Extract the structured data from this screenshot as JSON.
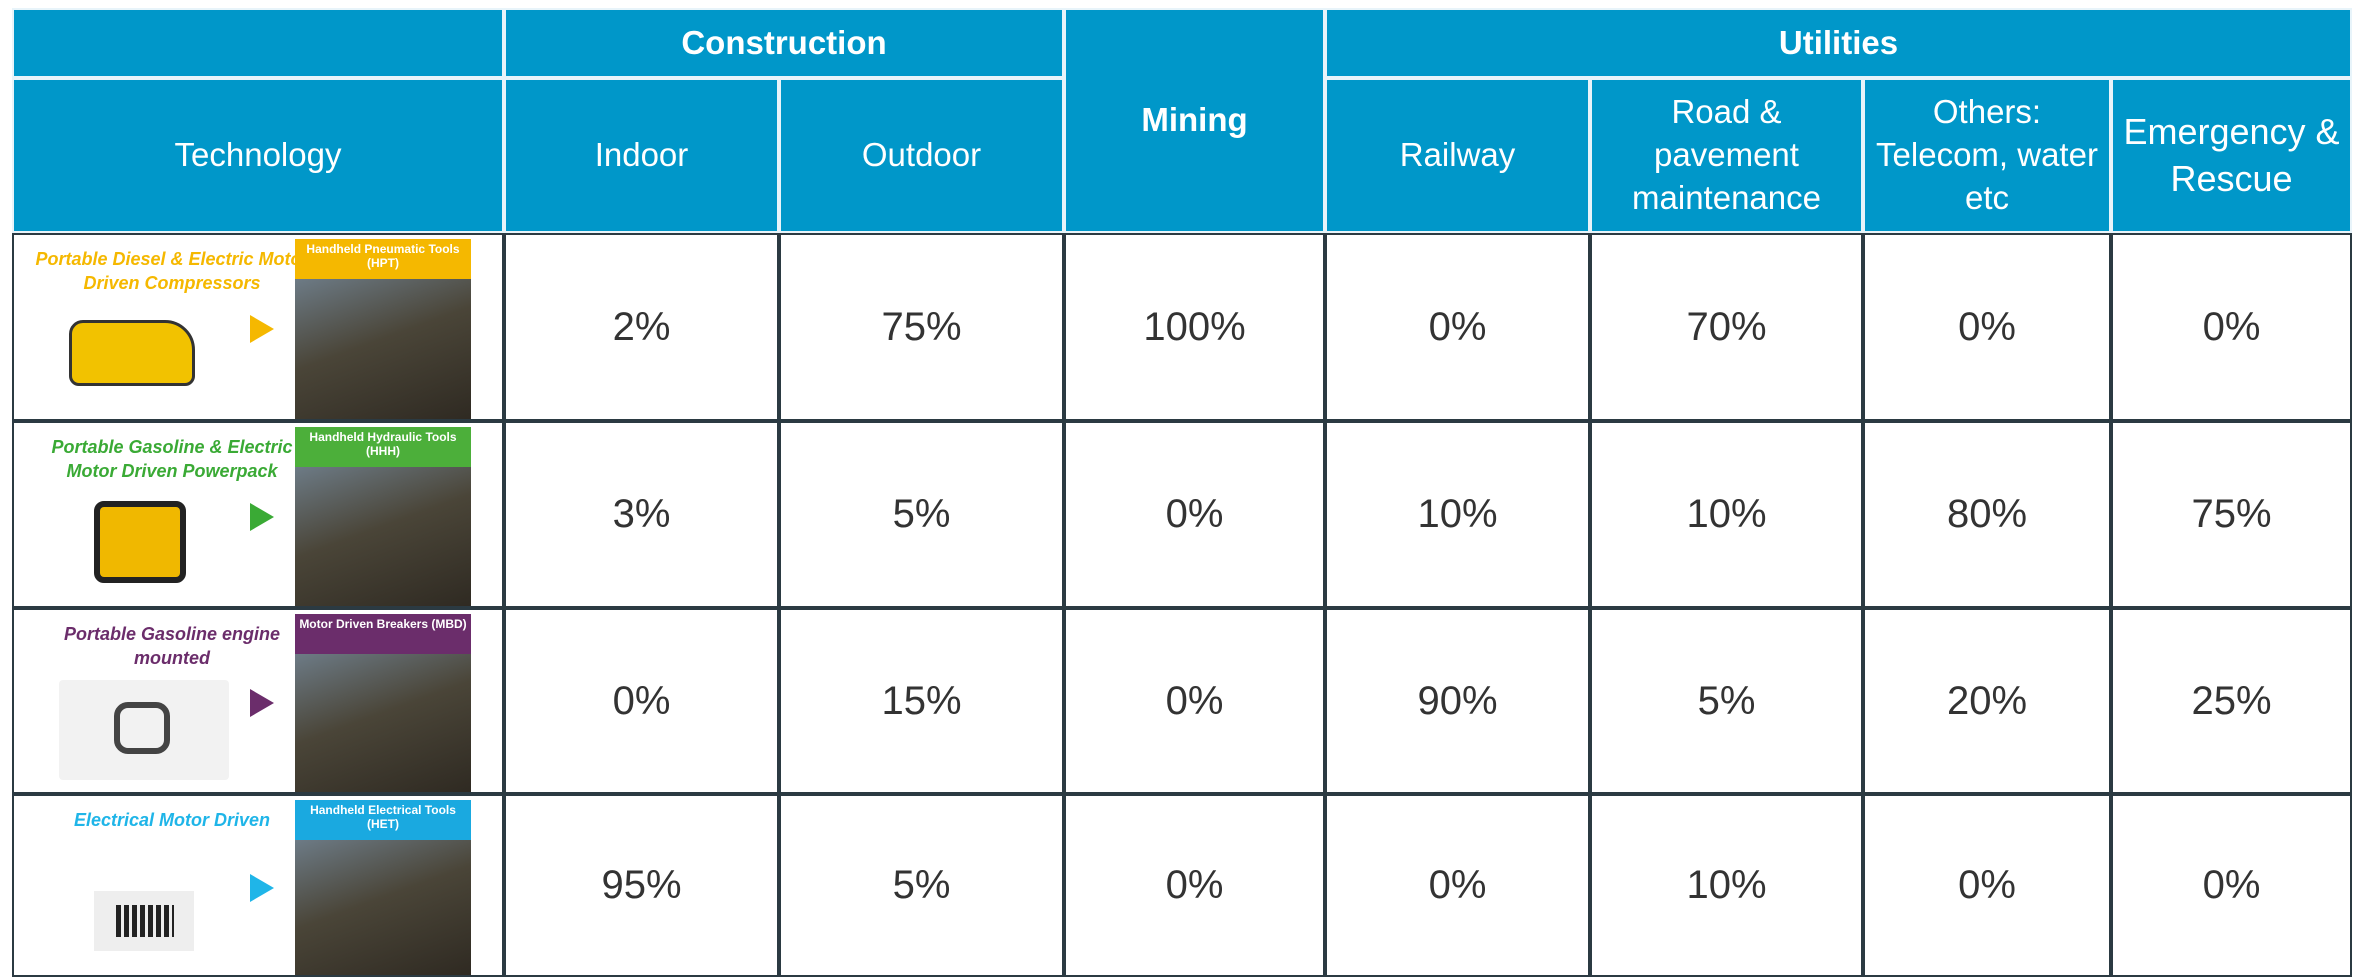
{
  "header": {
    "technology": "Technology",
    "construction": "Construction",
    "mining": "Mining",
    "utilities": "Utilities",
    "columns": [
      "Indoor",
      "Outdoor",
      "Railway",
      "Road & pavement maintenance",
      "Others: Telecom, water etc",
      "Emergency & Rescue"
    ]
  },
  "rows": [
    {
      "technology": "Portable Diesel & Electric Motor Driven Compressors",
      "tool": "Handheld Pneumatic Tools (HPT)",
      "values": [
        "2%",
        "75%",
        "100%",
        "0%",
        "70%",
        "0%",
        "0%"
      ]
    },
    {
      "technology": "Portable Gasoline & Electric Motor Driven Powerpack",
      "tool": "Handheld Hydraulic Tools (HHH)",
      "values": [
        "3%",
        "5%",
        "0%",
        "10%",
        "10%",
        "80%",
        "75%"
      ]
    },
    {
      "technology": "Portable Gasoline engine mounted",
      "tool": "Motor Driven Breakers (MBD)",
      "values": [
        "0%",
        "15%",
        "0%",
        "90%",
        "5%",
        "20%",
        "25%"
      ]
    },
    {
      "technology": "Electrical Motor Driven",
      "tool": "Handheld Electrical Tools (HET)",
      "values": [
        "95%",
        "5%",
        "0%",
        "0%",
        "10%",
        "0%",
        "0%"
      ]
    }
  ]
}
